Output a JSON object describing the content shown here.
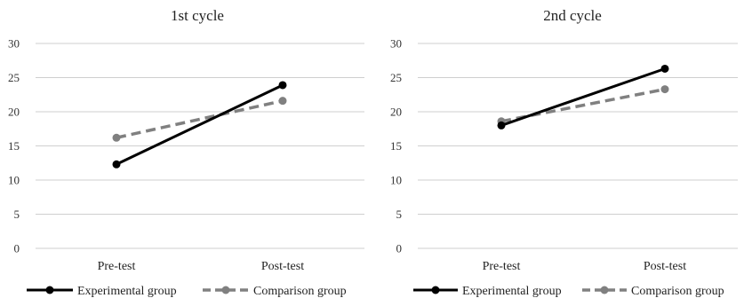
{
  "chart_data": [
    {
      "type": "line",
      "title": "1st cycle",
      "categories": [
        "Pre-test",
        "Post-test"
      ],
      "ylim": [
        0,
        30
      ],
      "yticks": [
        0,
        5,
        10,
        15,
        20,
        25,
        30
      ],
      "grid": true,
      "legend": "bottom",
      "series": [
        {
          "name": "Experimental group",
          "values": [
            12.3,
            23.9
          ],
          "color": "#000000",
          "dash": false
        },
        {
          "name": "Comparison group",
          "values": [
            16.2,
            21.6
          ],
          "color": "#808080",
          "dash": true
        }
      ]
    },
    {
      "type": "line",
      "title": "2nd cycle",
      "categories": [
        "Pre-test",
        "Post-test"
      ],
      "ylim": [
        0,
        30
      ],
      "yticks": [
        0,
        5,
        10,
        15,
        20,
        25,
        30
      ],
      "grid": true,
      "legend": "bottom",
      "series": [
        {
          "name": "Experimental group",
          "values": [
            18.0,
            26.3
          ],
          "color": "#000000",
          "dash": false
        },
        {
          "name": "Comparison group",
          "values": [
            18.6,
            23.3
          ],
          "color": "#808080",
          "dash": true
        }
      ]
    }
  ]
}
